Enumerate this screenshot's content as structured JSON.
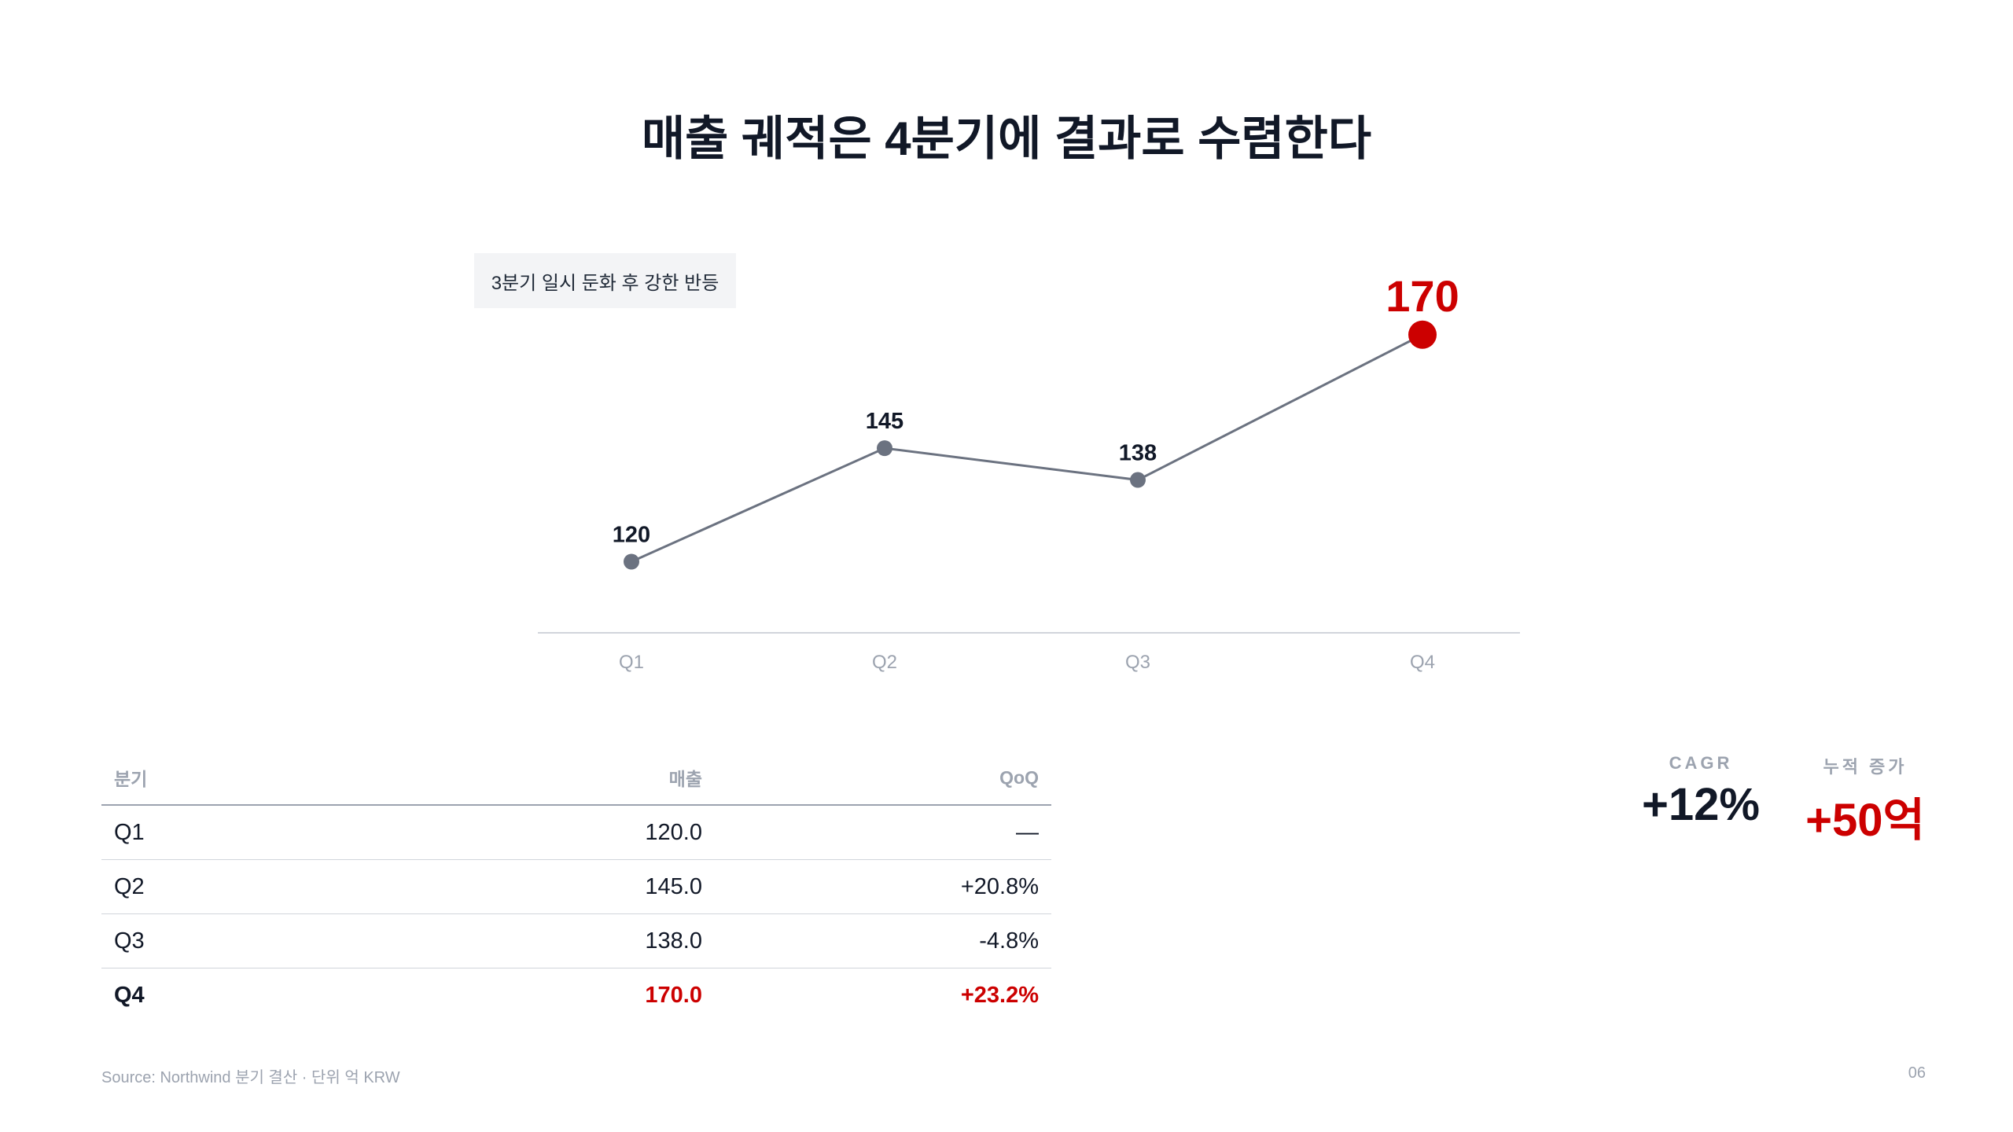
{
  "title": "매출 궤적은 4분기에 결과로 수렴한다",
  "annotation": "3분기 일시 둔화 후 강한 반등",
  "chart_data": {
    "type": "line",
    "categories": [
      "Q1",
      "Q2",
      "Q3",
      "Q4"
    ],
    "values": [
      120,
      145,
      138,
      170
    ],
    "data_labels": [
      "120",
      "145",
      "138",
      "170"
    ],
    "highlight_index": 3,
    "ylim": [
      100,
      180
    ],
    "grid": false,
    "line_color": "#6b7280",
    "highlight_color": "#cc0000"
  },
  "table": {
    "headers": [
      "분기",
      "매출",
      "QoQ"
    ],
    "rows": [
      [
        "Q1",
        "120.0",
        "—"
      ],
      [
        "Q2",
        "145.0",
        "+20.8%"
      ],
      [
        "Q3",
        "138.0",
        "-4.8%"
      ],
      [
        "Q4",
        "170.0",
        "+23.2%"
      ]
    ],
    "highlight_row": 3
  },
  "stats": {
    "cagr_label": "CAGR",
    "cagr_value": "+12%",
    "cum_label": "누적 증가",
    "cum_value": "+50억"
  },
  "source": "Source: Northwind 분기 결산 · 단위 억 KRW",
  "page_number": "06",
  "colors": {
    "accent": "#cc0000",
    "text": "#111827",
    "muted": "#9ca3af"
  }
}
